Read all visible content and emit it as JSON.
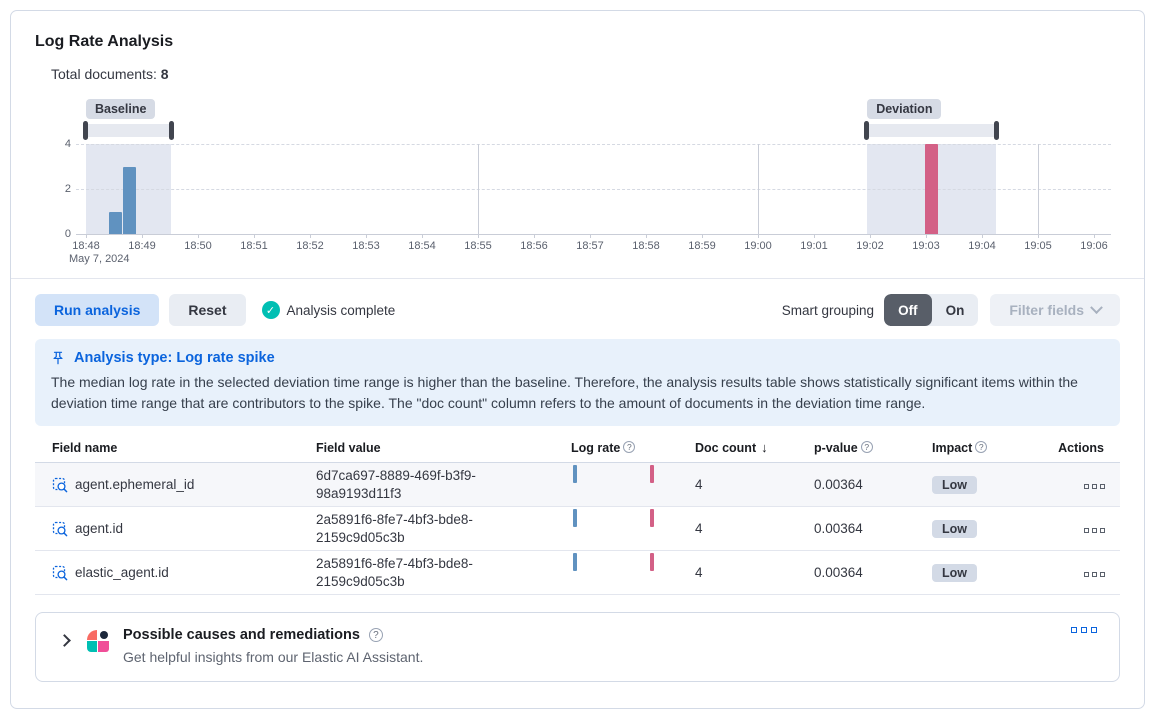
{
  "panel_title": "Log Rate Analysis",
  "total_documents": {
    "label": "Total documents:",
    "value": "8"
  },
  "chart_data": {
    "type": "bar",
    "title": "Log rate histogram with baseline and deviation brushes",
    "x_tick_labels": [
      "18:48",
      "18:49",
      "18:50",
      "18:51",
      "18:52",
      "18:53",
      "18:54",
      "18:55",
      "18:56",
      "18:57",
      "18:58",
      "18:59",
      "19:00",
      "19:01",
      "19:02",
      "19:03",
      "19:04",
      "19:05",
      "19:06"
    ],
    "x_date_label": "May 7, 2024",
    "y_tick_labels": [
      0,
      2,
      4
    ],
    "ylim": [
      0,
      4
    ],
    "grid": {
      "dashed_horizontal_values": [
        2,
        4
      ],
      "solid_vertical_minutes": [
        7,
        12,
        17
      ]
    },
    "bars": [
      {
        "minute": 0.52,
        "value": 1,
        "series": "baseline"
      },
      {
        "minute": 0.78,
        "value": 3,
        "series": "baseline"
      },
      {
        "minute": 15.1,
        "value": 4,
        "series": "deviation"
      }
    ],
    "brushes": {
      "baseline": {
        "label": "Baseline",
        "from_minute": 0,
        "to_minute": 1.52
      },
      "deviation": {
        "label": "Deviation",
        "from_minute": 13.95,
        "to_minute": 16.25
      }
    },
    "colors": {
      "baseline_bar": "#6092c0",
      "deviation_bar": "#d36086",
      "region": "#e3e7f1"
    }
  },
  "toolbar": {
    "run_button": "Run analysis",
    "reset_button": "Reset",
    "status": "Analysis complete",
    "smart_grouping_label": "Smart grouping",
    "toggle_off": "Off",
    "toggle_on": "On",
    "filter_fields": "Filter fields"
  },
  "callout": {
    "title": "Analysis type: Log rate spike",
    "body": "The median log rate in the selected deviation time range is higher than the baseline. Therefore, the analysis results table shows statistically significant items within the deviation time range that are contributors to the spike. The \"doc count\" column refers to the amount of documents in the deviation time range."
  },
  "table": {
    "columns": [
      {
        "label": "Field name"
      },
      {
        "label": "Field value"
      },
      {
        "label": "Log rate",
        "info": true
      },
      {
        "label": "Doc count",
        "sort": "desc"
      },
      {
        "label": "p-value",
        "info": true
      },
      {
        "label": "Impact",
        "info": true
      },
      {
        "label": "Actions"
      }
    ],
    "rows": [
      {
        "field_name": "agent.ephemeral_id",
        "field_value": "6d7ca697-8889-469f-b3f9-98a9193d11f3",
        "doc_count": "4",
        "p_value": "0.00364",
        "impact": "Low"
      },
      {
        "field_name": "agent.id",
        "field_value": "2a5891f6-8fe7-4bf3-bde8-2159c9d05c3b",
        "doc_count": "4",
        "p_value": "0.00364",
        "impact": "Low"
      },
      {
        "field_name": "elastic_agent.id",
        "field_value": "2a5891f6-8fe7-4bf3-bde8-2159c9d05c3b",
        "doc_count": "4",
        "p_value": "0.00364",
        "impact": "Low"
      }
    ]
  },
  "ai_panel": {
    "title": "Possible causes and remediations",
    "subtitle": "Get helpful insights from our Elastic AI Assistant."
  }
}
